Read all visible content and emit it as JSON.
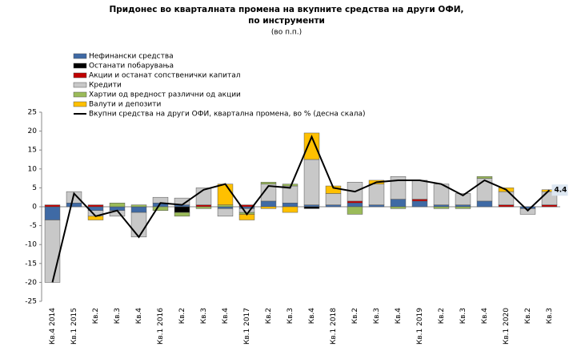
{
  "chart_data": {
    "type": "bar",
    "stacked": true,
    "title": [
      "Придонес во кварталната промена на вкупните средства на други ОФИ,",
      "по инструменти"
    ],
    "subtitle": "(во п.п.)",
    "categories": [
      "Кв.4 2014",
      "Кв.1 2015",
      "Кв.2",
      "Кв.3",
      "Кв.4",
      "Кв.1 2016",
      "Кв.2",
      "Кв.3",
      "Кв.4",
      "Кв.1 2017",
      "Кв.2",
      "Кв.3",
      "Кв.4",
      "Кв.1 2018",
      "Кв.2",
      "Кв.3",
      "Кв.4",
      "Кв.1 2019",
      "Кв.2",
      "Кв.3",
      "Кв.4",
      "Кв.1 2020",
      "Кв.2",
      "Кв.3"
    ],
    "series": [
      {
        "name": "Нефинански средства",
        "color": "#3f6aa5",
        "values": [
          -3.5,
          1,
          -1,
          -1,
          -1.5,
          1,
          0.5,
          0,
          -0.5,
          -0.5,
          1.5,
          1,
          0.5,
          0.5,
          1,
          0.5,
          2,
          1.5,
          0.5,
          0.5,
          1.5,
          0,
          -0.5,
          0
        ]
      },
      {
        "name": "Останати побарувања",
        "color": "#000000",
        "values": [
          0,
          0,
          0,
          0,
          0,
          0,
          -1.5,
          0,
          0,
          0,
          0,
          0,
          -0.5,
          0,
          0,
          0,
          0,
          0,
          0,
          0,
          0,
          0,
          0,
          0
        ]
      },
      {
        "name": "Акции и останат сопственички капитал",
        "color": "#c00000",
        "values": [
          0.5,
          0,
          0.5,
          0,
          0,
          0,
          0,
          0.5,
          0,
          0.5,
          0,
          0,
          0,
          0,
          0.5,
          0,
          0,
          0.5,
          0,
          0,
          0,
          0.5,
          0,
          0.5
        ]
      },
      {
        "name": "Кредити",
        "color": "#c8c8c8",
        "values": [
          -16.5,
          3,
          -1.5,
          -1.5,
          -6.5,
          1.5,
          1.8,
          4.5,
          -2,
          -1,
          4.5,
          4.5,
          12,
          3,
          5,
          5.5,
          6,
          5,
          5.5,
          3,
          6,
          3.5,
          -1.5,
          3.5
        ]
      },
      {
        "name": "Хартии од вредност различни од акции",
        "color": "#9bbb59",
        "values": [
          0,
          0,
          0,
          1,
          0.5,
          -1,
          -1,
          -0.5,
          0.5,
          -0.5,
          0.5,
          0.5,
          0,
          0,
          -2,
          0,
          -0.5,
          0,
          -0.5,
          -0.5,
          0.5,
          0,
          0,
          0
        ]
      },
      {
        "name": "Валути и депозити",
        "color": "#ffc000",
        "values": [
          0,
          0,
          -1,
          0,
          0,
          0,
          0,
          0,
          5.5,
          -1.5,
          -0.5,
          -1.5,
          7,
          2,
          0,
          1,
          0,
          0,
          0,
          0,
          0,
          1,
          0,
          0.5
        ]
      },
      {
        "name": "Вкупни средства на други ОФИ, квартална промена, во % (десна скала)",
        "color": "#000000",
        "type": "line",
        "values": [
          -20,
          3.5,
          -2.5,
          -1,
          -8,
          1,
          0.5,
          4.5,
          6,
          -2,
          5.5,
          5,
          18.5,
          5,
          4,
          6.5,
          7,
          7,
          6,
          3,
          7,
          4.5,
          -1,
          4.4
        ],
        "value_labels": [
          null,
          null,
          null,
          null,
          null,
          null,
          null,
          null,
          null,
          null,
          null,
          null,
          null,
          null,
          null,
          null,
          null,
          null,
          null,
          null,
          null,
          null,
          null,
          "4.4"
        ]
      }
    ],
    "ylim": [
      -25,
      25
    ],
    "yticks": [
      -25,
      -20,
      -15,
      -10,
      -5,
      0,
      5,
      10,
      15,
      20,
      25
    ],
    "legend": "top-left"
  }
}
